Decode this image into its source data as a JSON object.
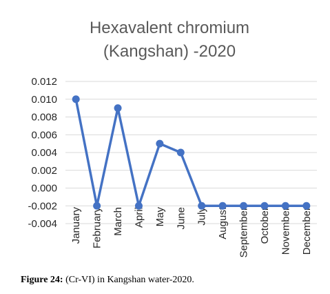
{
  "chart_data": {
    "type": "line",
    "title_lines": [
      "Hexavalent chromium",
      "(Kangshan) -2020"
    ],
    "categories": [
      "January",
      "February",
      "March",
      "April",
      "May",
      "June",
      "July",
      "August",
      "September",
      "October",
      "November",
      "December"
    ],
    "series": [
      {
        "values": [
          0.01,
          -0.002,
          0.009,
          -0.002,
          0.005,
          0.004,
          -0.002,
          -0.002,
          -0.002,
          -0.002,
          -0.002,
          -0.002
        ]
      }
    ],
    "yticks": [
      "0.012",
      "0.010",
      "0.008",
      "0.006",
      "0.004",
      "0.002",
      "0.000",
      "-0.002",
      "-0.004"
    ],
    "ylim": [
      -0.004,
      0.012
    ],
    "grid": true,
    "legend": "none",
    "color": "#4472C4"
  },
  "caption": {
    "label": "Figure 24:",
    "text": " (Cr-VI) in Kangshan water-2020."
  }
}
